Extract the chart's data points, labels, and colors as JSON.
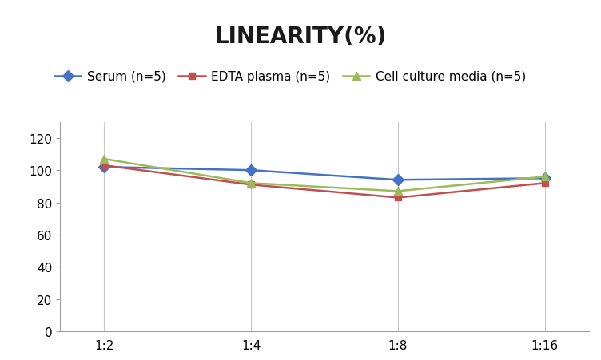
{
  "title": "LINEARITY(%)",
  "x_labels": [
    "1:2",
    "1:4",
    "1:8",
    "1:16"
  ],
  "x_positions": [
    0,
    1,
    2,
    3
  ],
  "series": [
    {
      "label": "Serum (n=5)",
      "values": [
        102,
        100,
        94,
        95
      ],
      "color": "#4472C4",
      "marker": "D",
      "markersize": 7,
      "linewidth": 1.8
    },
    {
      "label": "EDTA plasma (n=5)",
      "values": [
        103,
        91,
        83,
        92
      ],
      "color": "#C0504D",
      "marker": "s",
      "markersize": 6,
      "linewidth": 1.8
    },
    {
      "label": "Cell culture media (n=5)",
      "values": [
        107,
        92,
        87,
        96
      ],
      "color": "#9BBB59",
      "marker": "^",
      "markersize": 7,
      "linewidth": 1.8
    }
  ],
  "ylim": [
    0,
    130
  ],
  "yticks": [
    0,
    20,
    40,
    60,
    80,
    100,
    120
  ],
  "background_color": "#ffffff",
  "grid_color": "#c8c8c8",
  "title_fontsize": 20,
  "legend_fontsize": 11,
  "tick_fontsize": 11
}
